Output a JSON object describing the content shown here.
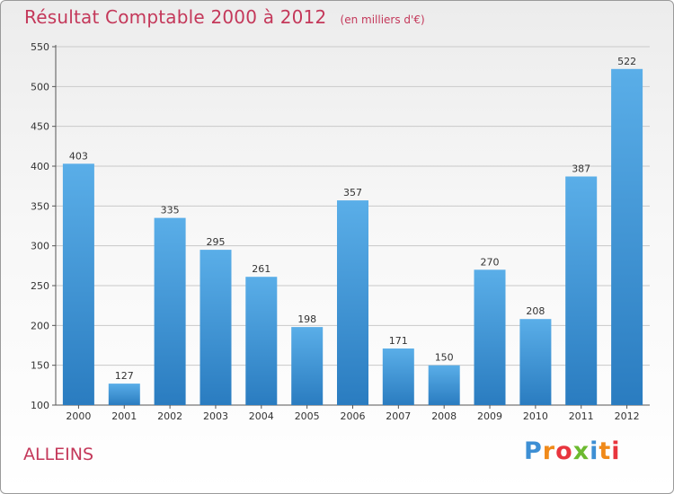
{
  "header": {
    "title": "Résultat Comptable 2000 à 2012",
    "subtitle": "(en milliers d'€)"
  },
  "footer": {
    "commune": "ALLEINS",
    "logo_text": "Proxiti",
    "logo_letters": [
      {
        "ch": "P",
        "color": "#3d8fd4"
      },
      {
        "ch": "r",
        "color": "#f08a1a"
      },
      {
        "ch": "o",
        "color": "#e8353e"
      },
      {
        "ch": "x",
        "color": "#6cba2f"
      },
      {
        "ch": "i",
        "color": "#3d8fd4"
      },
      {
        "ch": "t",
        "color": "#f08a1a"
      },
      {
        "ch": "i",
        "color": "#e8353e"
      }
    ]
  },
  "colors": {
    "bar_top": "#5aaee8",
    "bar_bottom": "#2a7cc0",
    "accent": "#c4385a",
    "grid": "#c9c9c9",
    "axis": "#555555"
  },
  "chart_data": {
    "type": "bar",
    "title": "Résultat Comptable 2000 à 2012",
    "subtitle": "(en milliers d'€)",
    "xlabel": "",
    "ylabel": "",
    "categories": [
      "2000",
      "2001",
      "2002",
      "2003",
      "2004",
      "2005",
      "2006",
      "2007",
      "2008",
      "2009",
      "2010",
      "2011",
      "2012"
    ],
    "values": [
      403,
      127,
      335,
      295,
      261,
      198,
      357,
      171,
      150,
      270,
      208,
      387,
      522
    ],
    "data_labels": [
      "403",
      "127",
      "335",
      "295",
      "261",
      "198",
      "357",
      "171",
      "150",
      "270",
      "208",
      "387",
      "522"
    ],
    "ylim": [
      100,
      550
    ],
    "yticks": [
      100,
      150,
      200,
      250,
      300,
      350,
      400,
      450,
      500,
      550
    ],
    "grid": true,
    "legend": "none"
  }
}
